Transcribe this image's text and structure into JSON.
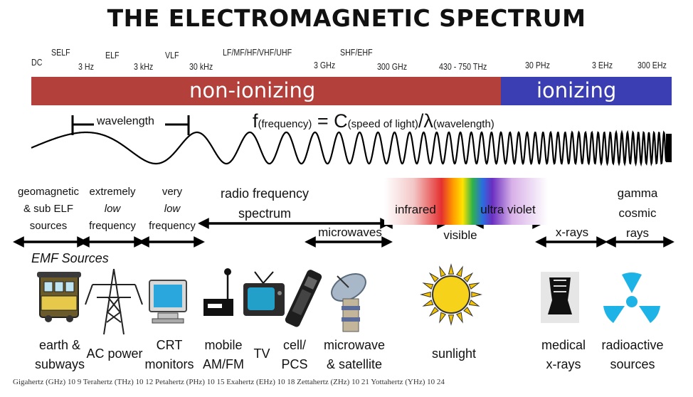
{
  "title": "THE ELECTROMAGNETIC SPECTRUM",
  "frequency_labels": {
    "dc": "DC",
    "self": "SELF",
    "hz3": "3 Hz",
    "elf": "ELF",
    "khz3": "3 kHz",
    "vlf": "VLF",
    "khz30": "30 kHz",
    "lf_band": "LF/MF/HF/VHF/UHF",
    "ghz3": "3 GHz",
    "shf_band": "SHF/EHF",
    "ghz300": "300 GHz",
    "thz": "430 - 750 THz",
    "phz": "30 PHz",
    "ehz3": "3 EHz",
    "ehz300": "300 EHz"
  },
  "bands": {
    "non_ionizing": "non-ionizing",
    "ionizing": "ionizing",
    "non_ionizing_color": "#b3403b",
    "ionizing_color": "#3a3eb2"
  },
  "wave": {
    "wavelength_label": "wavelength",
    "formula_f": "f",
    "formula_f_sub": "(frequency)",
    "formula_eq": " = C",
    "formula_c_sub": "(speed of light)",
    "formula_slash": "/λ",
    "formula_l_sub": "(wavelength)"
  },
  "categories": {
    "geomagnetic": [
      "geomagnetic",
      "& sub ELF",
      "sources"
    ],
    "elf": [
      "extremely",
      "low",
      "frequency"
    ],
    "vlf": [
      "very",
      "low",
      "frequency"
    ],
    "radio": [
      "radio frequency",
      "spectrum"
    ],
    "microwaves": "microwaves",
    "infrared": "infrared",
    "visible": "visible",
    "ultraviolet": "ultra violet",
    "xrays": "x-rays",
    "gamma": [
      "gamma",
      "cosmic",
      "rays"
    ]
  },
  "emf_sources_title": "EMF Sources",
  "sources": {
    "earth": [
      "earth &",
      "subways"
    ],
    "ac": [
      "AC power"
    ],
    "crt": [
      "CRT",
      "monitors"
    ],
    "mobile": [
      "mobile",
      "AM/FM"
    ],
    "tv": [
      "TV"
    ],
    "cell": [
      "cell/",
      "PCS"
    ],
    "microwave": [
      "microwave",
      "& satellite"
    ],
    "sunlight": [
      "sunlight"
    ],
    "medical": [
      "medical",
      "x-rays"
    ],
    "radioactive": [
      "radioactive",
      "sources"
    ]
  },
  "icons": [
    "trolley-icon",
    "power-tower-icon",
    "crt-monitor-icon",
    "radio-icon",
    "tv-icon",
    "cell-phone-icon",
    "satellite-dish-icon",
    "sun-icon",
    "xray-icon",
    "radiation-icon"
  ],
  "footer": "Gigahertz (GHz) 10 9   Terahertz (THz) 10 12   Petahertz (PHz) 10 15   Exahertz (EHz) 10 18   Zettahertz (ZHz) 10 21   Yottahertz (YHz) 10 24"
}
